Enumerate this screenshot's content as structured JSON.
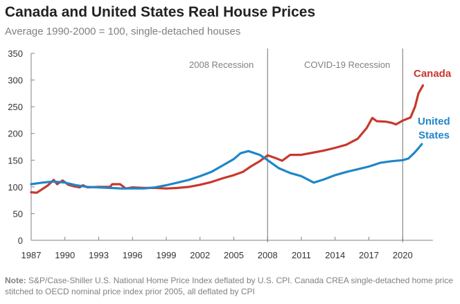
{
  "title": "Canada  and United States Real House Prices",
  "subtitle": "Average  1990-2000 = 100, single-detached  houses",
  "note_label": "Note:",
  "note_text": " S&P/Case-Shiller U.S. National Home Price Index deflated by U.S. CPI. Canada CREA single-detached home price stitched to OECD nominal price index prior 2005, all deflated by CPI",
  "chart_data": {
    "type": "line",
    "xlabel": "",
    "ylabel": "",
    "xlim": [
      1987,
      2022.5
    ],
    "ylim": [
      0,
      350
    ],
    "xticks": [
      1987,
      1990,
      1993,
      1996,
      1999,
      2002,
      2005,
      2008,
      2011,
      2014,
      2017,
      2020
    ],
    "yticks": [
      0,
      50,
      100,
      150,
      200,
      250,
      300,
      350
    ],
    "grid": false,
    "legend": "direct labels at line ends",
    "annotations": [
      {
        "label": "2008  Recession",
        "x": 2008
      },
      {
        "label": "COVID-19  Recession",
        "x": 2020
      }
    ],
    "series": [
      {
        "name": "Canada",
        "color": "#c9372c",
        "x": [
          1987,
          1987.5,
          1988,
          1988.5,
          1989,
          1989.3,
          1989.8,
          1990.3,
          1990.8,
          1991.3,
          1991.6,
          1992,
          1993,
          1994,
          1994.2,
          1994.9,
          1995.4,
          1996,
          1997,
          1998,
          1999,
          2000,
          2001,
          2002,
          2003,
          2004,
          2005,
          2005.8,
          2006.5,
          2007.3,
          2008,
          2008.7,
          2009.3,
          2010,
          2011,
          2012,
          2013,
          2014,
          2015,
          2016,
          2016.8,
          2017.3,
          2017.7,
          2018.5,
          2019,
          2019.4,
          2020,
          2020.7,
          2021.1,
          2021.4,
          2021.8
        ],
        "y": [
          90,
          89,
          96,
          103,
          113,
          105,
          112,
          104,
          101,
          99,
          103,
          99,
          100,
          100,
          105,
          105,
          97,
          99,
          98,
          98,
          97,
          98,
          100,
          104,
          109,
          116,
          122,
          128,
          138,
          148,
          159,
          154,
          149,
          160,
          160,
          164,
          168,
          173,
          179,
          190,
          210,
          229,
          223,
          222,
          220,
          217,
          224,
          230,
          250,
          275,
          290
        ]
      },
      {
        "name": "United States",
        "color": "#1f86c8",
        "x": [
          1987,
          1988,
          1989,
          1990,
          1991,
          1992,
          1993,
          1994,
          1995,
          1996,
          1997,
          1998,
          1999,
          2000,
          2001,
          2002,
          2003,
          2004,
          2005,
          2005.6,
          2006.3,
          2007.3,
          2008,
          2009,
          2010,
          2011,
          2012.1,
          2013,
          2014,
          2015,
          2016,
          2017,
          2018,
          2019,
          2020,
          2020.5,
          2021,
          2021.3,
          2021.7
        ],
        "y": [
          105,
          108,
          110,
          108,
          103,
          100,
          99,
          98,
          97,
          97,
          97,
          99,
          103,
          108,
          113,
          120,
          128,
          140,
          152,
          163,
          167,
          160,
          150,
          135,
          126,
          120,
          108,
          114,
          122,
          128,
          133,
          138,
          145,
          148,
          150,
          153,
          163,
          170,
          180
        ]
      }
    ]
  }
}
